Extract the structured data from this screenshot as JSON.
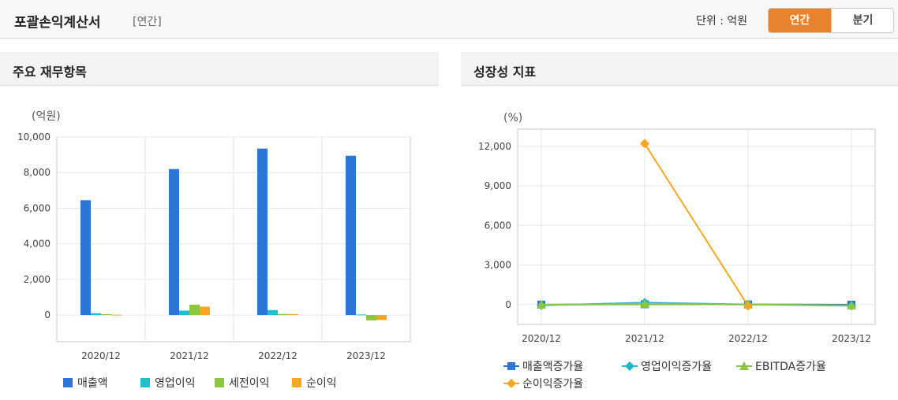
{
  "header": {
    "title": "포괄손익계산서",
    "subtitle": "[연간]",
    "unit_label": "단위 : 억원",
    "toggle": {
      "annual": "연간",
      "quarterly": "분기"
    }
  },
  "left_panel": {
    "title": "주요 재무항목"
  },
  "right_panel": {
    "title": "성장성 지표"
  },
  "chart_data": [
    {
      "type": "bar",
      "title": "주요 재무항목",
      "ylabel": "(억원)",
      "ylim": [
        -1500,
        10000
      ],
      "yticks": [
        0,
        2000,
        4000,
        6000,
        8000,
        10000
      ],
      "ytick_labels": [
        "0",
        "2,000",
        "4,000",
        "6,000",
        "8,000",
        "10,000"
      ],
      "categories": [
        "2020/12",
        "2021/12",
        "2022/12",
        "2023/12"
      ],
      "series": [
        {
          "name": "매출액",
          "color": "#2e75d6",
          "values": [
            6450,
            8200,
            9350,
            8950
          ]
        },
        {
          "name": "영업이익",
          "color": "#1fc0c8",
          "values": [
            100,
            250,
            280,
            30
          ]
        },
        {
          "name": "세전이익",
          "color": "#8cc63f",
          "values": [
            50,
            580,
            60,
            -300
          ]
        },
        {
          "name": "순이익",
          "color": "#f5a623",
          "values": [
            20,
            470,
            50,
            -280
          ]
        }
      ],
      "legend": "bottom",
      "grid": true
    },
    {
      "type": "line",
      "title": "성장성 지표",
      "ylabel": "(%)",
      "ylim": [
        -1500,
        13300
      ],
      "yticks": [
        0,
        3000,
        6000,
        9000,
        12000
      ],
      "ytick_labels": [
        "0",
        "3,000",
        "6,000",
        "9,000",
        "12,000"
      ],
      "categories": [
        "2020/12",
        "2021/12",
        "2022/12",
        "2023/12"
      ],
      "series": [
        {
          "name": "매출액증가율",
          "color": "#2e75d6",
          "marker": "square",
          "values": [
            0,
            27,
            14,
            -4
          ]
        },
        {
          "name": "영업이익증가율",
          "color": "#1fb8c8",
          "marker": "diamond",
          "values": [
            -50,
            150,
            12,
            -89
          ]
        },
        {
          "name": "EBITDA증가율",
          "color": "#8cc63f",
          "marker": "triangle",
          "values": [
            -10,
            60,
            5,
            -60
          ]
        },
        {
          "name": "순이익증가율",
          "color": "#f5a623",
          "marker": "diamond",
          "values": [
            null,
            12200,
            -89,
            null
          ]
        }
      ],
      "legend": "bottom",
      "grid": true
    }
  ]
}
